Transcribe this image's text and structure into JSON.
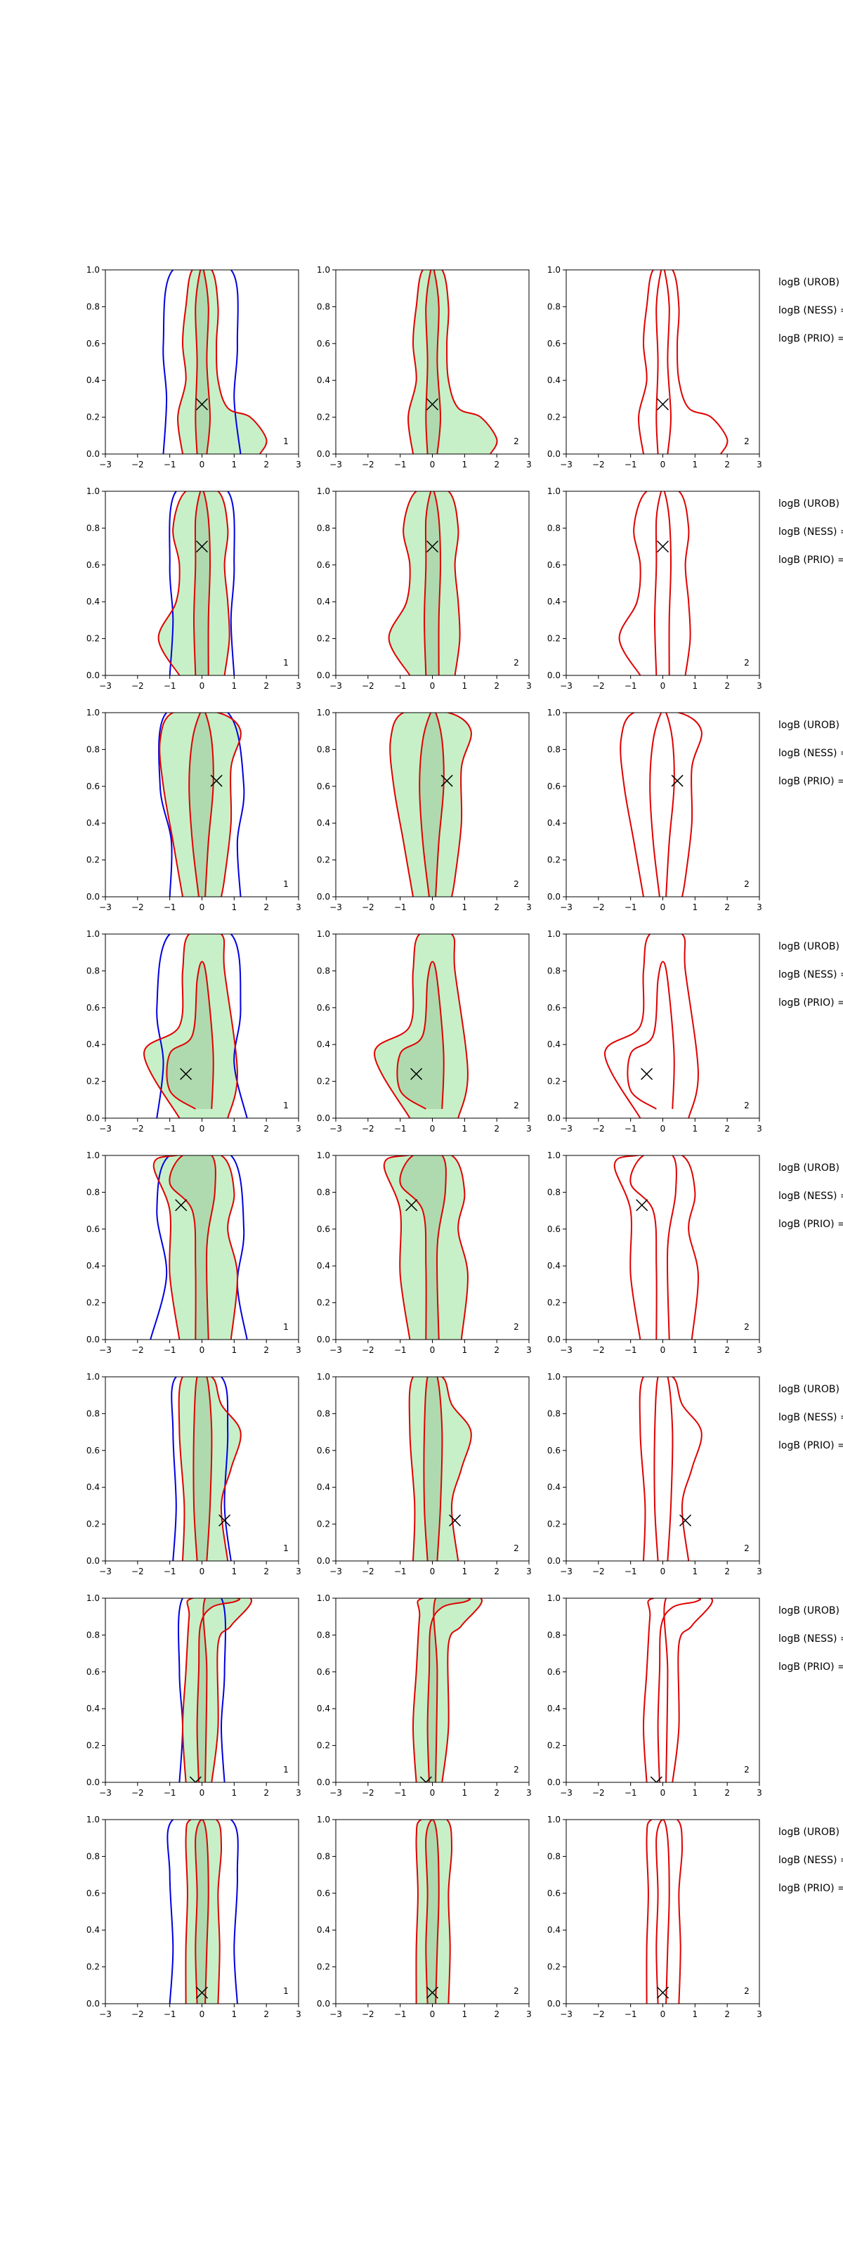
{
  "figure": {
    "legend_labels": [
      "logB (UROB) =",
      "logB (NESS) =",
      "logB (PRIO) ="
    ],
    "panel_tags": [
      "1",
      "2",
      "2"
    ]
  },
  "colors": {
    "fill_light": "#c8f0c8",
    "fill_dark": "#a9d4a9",
    "contour_red": "#e00000",
    "contour_blue": "#0000e0",
    "marker": "#000000"
  },
  "chart_data": {
    "type": "contour",
    "rows": 8,
    "columns": 3,
    "xlim": [
      -3,
      3
    ],
    "ylim": [
      0,
      1
    ],
    "xticks": [
      "−3",
      "−2",
      "−1",
      "0",
      "1",
      "2",
      "3"
    ],
    "yticks": [
      "0.0",
      "0.2",
      "0.4",
      "0.6",
      "0.8",
      "1.0"
    ],
    "grid": false,
    "panel_columns": [
      {
        "tag": "1",
        "layers": [
          "filled",
          "red_contours",
          "blue_contours"
        ]
      },
      {
        "tag": "2",
        "layers": [
          "filled",
          "red_contours"
        ]
      },
      {
        "tag": "2",
        "layers": [
          "red_contours"
        ]
      }
    ],
    "markers": [
      {
        "x": 0.0,
        "y": 0.27
      },
      {
        "x": 0.0,
        "y": 0.7
      },
      {
        "x": 0.45,
        "y": 0.63
      },
      {
        "x": -0.5,
        "y": 0.24
      },
      {
        "x": -0.65,
        "y": 0.73
      },
      {
        "x": 0.7,
        "y": 0.22
      },
      {
        "x": -0.2,
        "y": 0.0
      },
      {
        "x": 0.0,
        "y": 0.06
      }
    ],
    "contours": [
      {
        "inner": [
          [
            -0.15,
            0
          ],
          [
            -0.2,
            0.2
          ],
          [
            -0.15,
            0.5
          ],
          [
            -0.2,
            0.8
          ],
          [
            -0.05,
            1
          ],
          [
            0.05,
            1
          ],
          [
            0.2,
            0.8
          ],
          [
            0.15,
            0.5
          ],
          [
            0.25,
            0.2
          ],
          [
            0.15,
            0
          ]
        ],
        "outer": [
          [
            -0.6,
            0
          ],
          [
            -0.75,
            0.2
          ],
          [
            -0.5,
            0.4
          ],
          [
            -0.6,
            0.6
          ],
          [
            -0.5,
            0.8
          ],
          [
            -0.3,
            1
          ],
          [
            0.3,
            1
          ],
          [
            0.5,
            0.8
          ],
          [
            0.45,
            0.6
          ],
          [
            0.5,
            0.4
          ],
          [
            0.8,
            0.25
          ],
          [
            1.5,
            0.2
          ],
          [
            2.0,
            0.08
          ],
          [
            1.8,
            0
          ]
        ],
        "blue": [
          [
            -1.2,
            0
          ],
          [
            -1.1,
            0.3
          ],
          [
            -1.2,
            0.6
          ],
          [
            -0.9,
            1
          ],
          [
            0.9,
            1
          ],
          [
            1.1,
            0.6
          ],
          [
            1.0,
            0.3
          ],
          [
            1.2,
            0
          ]
        ]
      },
      {
        "inner": [
          [
            -0.2,
            0
          ],
          [
            -0.25,
            0.3
          ],
          [
            -0.2,
            0.6
          ],
          [
            -0.2,
            0.85
          ],
          [
            -0.05,
            1
          ],
          [
            0.05,
            1
          ],
          [
            0.2,
            0.85
          ],
          [
            0.25,
            0.6
          ],
          [
            0.2,
            0.3
          ],
          [
            0.2,
            0
          ]
        ],
        "outer": [
          [
            -0.7,
            0
          ],
          [
            -1.35,
            0.2
          ],
          [
            -0.8,
            0.4
          ],
          [
            -0.7,
            0.6
          ],
          [
            -0.9,
            0.8
          ],
          [
            -0.5,
            1
          ],
          [
            0.5,
            1
          ],
          [
            0.8,
            0.8
          ],
          [
            0.7,
            0.6
          ],
          [
            0.8,
            0.4
          ],
          [
            0.85,
            0.2
          ],
          [
            0.7,
            0
          ]
        ],
        "blue": [
          [
            -1.0,
            0
          ],
          [
            -0.9,
            0.3
          ],
          [
            -1.0,
            0.6
          ],
          [
            -0.8,
            1
          ],
          [
            0.8,
            1
          ],
          [
            1.0,
            0.6
          ],
          [
            0.9,
            0.3
          ],
          [
            1.0,
            0
          ]
        ]
      },
      {
        "inner": [
          [
            -0.1,
            0
          ],
          [
            -0.3,
            0.3
          ],
          [
            -0.4,
            0.6
          ],
          [
            -0.3,
            0.85
          ],
          [
            -0.05,
            1
          ],
          [
            0.1,
            1
          ],
          [
            0.3,
            0.85
          ],
          [
            0.35,
            0.6
          ],
          [
            0.2,
            0.3
          ],
          [
            0.1,
            0
          ]
        ],
        "outer": [
          [
            -0.6,
            0
          ],
          [
            -0.9,
            0.3
          ],
          [
            -1.2,
            0.6
          ],
          [
            -1.3,
            0.85
          ],
          [
            -0.9,
            1
          ],
          [
            0.5,
            1
          ],
          [
            1.2,
            0.9
          ],
          [
            0.9,
            0.7
          ],
          [
            0.9,
            0.4
          ],
          [
            0.7,
            0.1
          ],
          [
            0.6,
            0
          ]
        ],
        "blue": [
          [
            -1.0,
            0
          ],
          [
            -0.95,
            0.3
          ],
          [
            -1.3,
            0.6
          ],
          [
            -1.1,
            1
          ],
          [
            0.8,
            1
          ],
          [
            1.3,
            0.6
          ],
          [
            1.1,
            0.3
          ],
          [
            1.2,
            0
          ]
        ]
      },
      {
        "inner": [
          [
            -0.2,
            0.05
          ],
          [
            -1.0,
            0.15
          ],
          [
            -1.0,
            0.35
          ],
          [
            -0.3,
            0.45
          ],
          [
            -0.15,
            0.75
          ],
          [
            0,
            0.85
          ],
          [
            0.15,
            0.75
          ],
          [
            0.35,
            0.35
          ],
          [
            0.3,
            0.05
          ]
        ],
        "outer": [
          [
            -0.7,
            0
          ],
          [
            -1.8,
            0.35
          ],
          [
            -0.7,
            0.5
          ],
          [
            -0.6,
            0.8
          ],
          [
            -0.4,
            1
          ],
          [
            0.6,
            1
          ],
          [
            0.7,
            0.8
          ],
          [
            1.1,
            0.25
          ],
          [
            0.8,
            0
          ]
        ],
        "blue": [
          [
            -1.4,
            0
          ],
          [
            -1.2,
            0.3
          ],
          [
            -1.4,
            0.6
          ],
          [
            -1.0,
            1
          ],
          [
            0.9,
            1
          ],
          [
            1.2,
            0.6
          ],
          [
            1.0,
            0.3
          ],
          [
            1.4,
            0
          ]
        ]
      },
      {
        "inner": [
          [
            -0.2,
            0
          ],
          [
            -0.2,
            0.4
          ],
          [
            -0.3,
            0.7
          ],
          [
            -1.0,
            0.85
          ],
          [
            -0.6,
            1
          ],
          [
            0.3,
            1
          ],
          [
            0.4,
            0.8
          ],
          [
            0.15,
            0.5
          ],
          [
            0.2,
            0
          ]
        ],
        "outer": [
          [
            -0.7,
            0
          ],
          [
            -1.0,
            0.35
          ],
          [
            -1.0,
            0.7
          ],
          [
            -1.5,
            0.95
          ],
          [
            -0.8,
            1
          ],
          [
            0.6,
            1
          ],
          [
            1.0,
            0.8
          ],
          [
            0.8,
            0.6
          ],
          [
            1.1,
            0.35
          ],
          [
            0.9,
            0
          ]
        ],
        "blue": [
          [
            -1.6,
            0
          ],
          [
            -1.1,
            0.35
          ],
          [
            -1.4,
            0.7
          ],
          [
            -1.0,
            1
          ],
          [
            0.9,
            1
          ],
          [
            1.3,
            0.6
          ],
          [
            1.1,
            0.3
          ],
          [
            1.4,
            0
          ]
        ]
      },
      {
        "inner": [
          [
            -0.15,
            0
          ],
          [
            -0.25,
            0.3
          ],
          [
            -0.25,
            0.7
          ],
          [
            -0.15,
            1
          ],
          [
            0.15,
            1
          ],
          [
            0.3,
            0.7
          ],
          [
            0.25,
            0.3
          ],
          [
            0.15,
            0
          ]
        ],
        "outer": [
          [
            -0.6,
            0
          ],
          [
            -0.55,
            0.3
          ],
          [
            -0.7,
            0.7
          ],
          [
            -0.6,
            1
          ],
          [
            0.3,
            1
          ],
          [
            0.6,
            0.85
          ],
          [
            1.2,
            0.7
          ],
          [
            0.9,
            0.5
          ],
          [
            0.6,
            0.3
          ],
          [
            0.8,
            0
          ]
        ],
        "blue": [
          [
            -0.9,
            0
          ],
          [
            -0.8,
            0.3
          ],
          [
            -0.9,
            0.7
          ],
          [
            -0.8,
            1
          ],
          [
            0.6,
            1
          ],
          [
            0.8,
            0.7
          ],
          [
            0.7,
            0.3
          ],
          [
            0.9,
            0
          ]
        ]
      },
      {
        "inner": [
          [
            -0.1,
            0
          ],
          [
            -0.15,
            0.3
          ],
          [
            -0.1,
            0.6
          ],
          [
            -0.05,
            0.85
          ],
          [
            0.3,
            0.95
          ],
          [
            1.0,
            0.98
          ],
          [
            1.1,
            1
          ],
          [
            0.1,
            1
          ],
          [
            0.15,
            0.6
          ],
          [
            0.1,
            0
          ]
        ],
        "outer": [
          [
            -0.5,
            0
          ],
          [
            -0.6,
            0.3
          ],
          [
            -0.5,
            0.6
          ],
          [
            -0.4,
            0.9
          ],
          [
            -0.3,
            1
          ],
          [
            1.5,
            1
          ],
          [
            0.9,
            0.85
          ],
          [
            0.5,
            0.75
          ],
          [
            0.5,
            0.3
          ],
          [
            0.3,
            0
          ]
        ],
        "blue": [
          [
            -0.7,
            0
          ],
          [
            -0.6,
            0.3
          ],
          [
            -0.7,
            0.6
          ],
          [
            -0.6,
            1
          ],
          [
            0.6,
            1
          ],
          [
            0.7,
            0.6
          ],
          [
            0.6,
            0.3
          ],
          [
            0.7,
            0
          ]
        ]
      },
      {
        "inner": [
          [
            -0.15,
            0
          ],
          [
            -0.2,
            0.3
          ],
          [
            -0.15,
            0.6
          ],
          [
            -0.2,
            0.9
          ],
          [
            0,
            1
          ],
          [
            0.15,
            0.9
          ],
          [
            0.2,
            0.6
          ],
          [
            0.15,
            0.3
          ],
          [
            0.1,
            0
          ]
        ],
        "outer": [
          [
            -0.5,
            0
          ],
          [
            -0.5,
            0.3
          ],
          [
            -0.45,
            0.6
          ],
          [
            -0.5,
            0.9
          ],
          [
            -0.35,
            1
          ],
          [
            0.45,
            1
          ],
          [
            0.6,
            0.85
          ],
          [
            0.5,
            0.6
          ],
          [
            0.55,
            0.3
          ],
          [
            0.5,
            0
          ]
        ],
        "blue": [
          [
            -1.0,
            0
          ],
          [
            -0.9,
            0.3
          ],
          [
            -1.0,
            0.7
          ],
          [
            -0.9,
            1
          ],
          [
            0.9,
            1
          ],
          [
            1.1,
            0.7
          ],
          [
            1.0,
            0.3
          ],
          [
            1.1,
            0
          ]
        ]
      }
    ]
  }
}
